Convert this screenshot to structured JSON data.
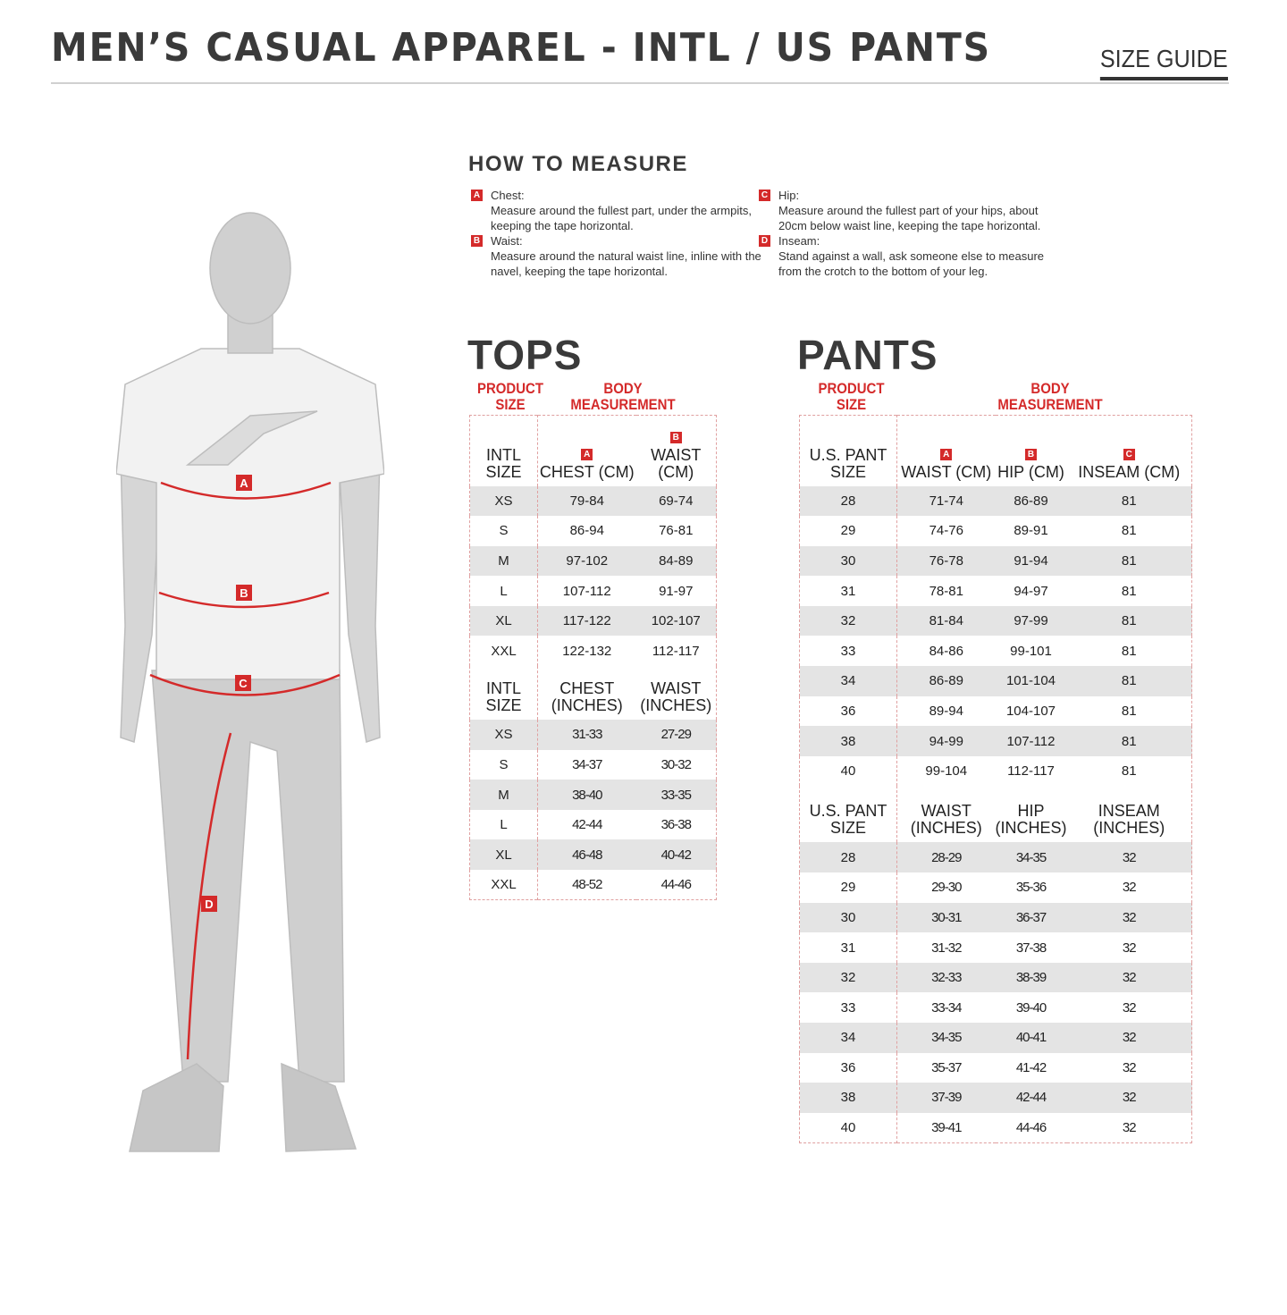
{
  "header": {
    "title": "MEN’S CASUAL APPAREL - INTL / US PANTS",
    "tag": "SIZE GUIDE"
  },
  "how_to_measure": {
    "title": "HOW TO MEASURE",
    "items": [
      {
        "letter": "A",
        "label": "Chest:",
        "text": "Measure around the fullest part, under the armpits, keeping the tape horizontal."
      },
      {
        "letter": "B",
        "label": "Waist:",
        "text": "Measure around the natural waist line, inline with the navel, keeping the tape horizontal."
      },
      {
        "letter": "C",
        "label": "Hip:",
        "text": "Measure around the fullest part of your hips, about 20cm below waist line, keeping the tape horizontal."
      },
      {
        "letter": "D",
        "label": "Inseam:",
        "text": "Stand against a wall, ask someone else to measure from the crotch to the bottom of your leg."
      }
    ]
  },
  "figure": {
    "markers": [
      "A",
      "B",
      "C",
      "D"
    ]
  },
  "accent_color": "#d42a2a",
  "tops": {
    "title": "TOPS",
    "product_size": "PRODUCT SIZE",
    "body_measurement": "BODY MEASUREMENT",
    "sections": [
      {
        "letters": [
          "",
          "A",
          "B"
        ],
        "headers": [
          "INTL SIZE",
          "CHEST (CM)",
          "WAIST (CM)"
        ],
        "rows": [
          [
            "XS",
            "79-84",
            "69-74"
          ],
          [
            "S",
            "86-94",
            "76-81"
          ],
          [
            "M",
            "97-102",
            "84-89"
          ],
          [
            "L",
            "107-112",
            "91-97"
          ],
          [
            "XL",
            "117-122",
            "102-107"
          ],
          [
            "XXL",
            "122-132",
            "112-117"
          ]
        ]
      },
      {
        "letters": [
          "",
          "",
          ""
        ],
        "headers": [
          "INTL SIZE",
          "CHEST (INCHES)",
          "WAIST (INCHES)"
        ],
        "rows": [
          [
            "XS",
            "31-33",
            "27-29"
          ],
          [
            "S",
            "34-37",
            "30-32"
          ],
          [
            "M",
            "38-40",
            "33-35"
          ],
          [
            "L",
            "42-44",
            "36-38"
          ],
          [
            "XL",
            "46-48",
            "40-42"
          ],
          [
            "XXL",
            "48-52",
            "44-46"
          ]
        ]
      }
    ]
  },
  "pants": {
    "title": "PANTS",
    "product_size": "PRODUCT SIZE",
    "body_measurement": "BODY MEASUREMENT",
    "sections": [
      {
        "letters": [
          "",
          "A",
          "B",
          "C"
        ],
        "headers": [
          "U.S. PANT SIZE",
          "WAIST (CM)",
          "HIP (CM)",
          "INSEAM (CM)"
        ],
        "rows": [
          [
            "28",
            "71-74",
            "86-89",
            "81"
          ],
          [
            "29",
            "74-76",
            "89-91",
            "81"
          ],
          [
            "30",
            "76-78",
            "91-94",
            "81"
          ],
          [
            "31",
            "78-81",
            "94-97",
            "81"
          ],
          [
            "32",
            "81-84",
            "97-99",
            "81"
          ],
          [
            "33",
            "84-86",
            "99-101",
            "81"
          ],
          [
            "34",
            "86-89",
            "101-104",
            "81"
          ],
          [
            "36",
            "89-94",
            "104-107",
            "81"
          ],
          [
            "38",
            "94-99",
            "107-112",
            "81"
          ],
          [
            "40",
            "99-104",
            "112-117",
            "81"
          ]
        ]
      },
      {
        "letters": [
          "",
          "",
          "",
          ""
        ],
        "headers": [
          "U.S. PANT SIZE",
          "WAIST (INCHES)",
          "HIP (INCHES)",
          "INSEAM (INCHES)"
        ],
        "rows": [
          [
            "28",
            "28-29",
            "34-35",
            "32"
          ],
          [
            "29",
            "29-30",
            "35-36",
            "32"
          ],
          [
            "30",
            "30-31",
            "36-37",
            "32"
          ],
          [
            "31",
            "31-32",
            "37-38",
            "32"
          ],
          [
            "32",
            "32-33",
            "38-39",
            "32"
          ],
          [
            "33",
            "33-34",
            "39-40",
            "32"
          ],
          [
            "34",
            "34-35",
            "40-41",
            "32"
          ],
          [
            "36",
            "35-37",
            "41-42",
            "32"
          ],
          [
            "38",
            "37-39",
            "42-44",
            "32"
          ],
          [
            "40",
            "39-41",
            "44-46",
            "32"
          ]
        ]
      }
    ]
  }
}
